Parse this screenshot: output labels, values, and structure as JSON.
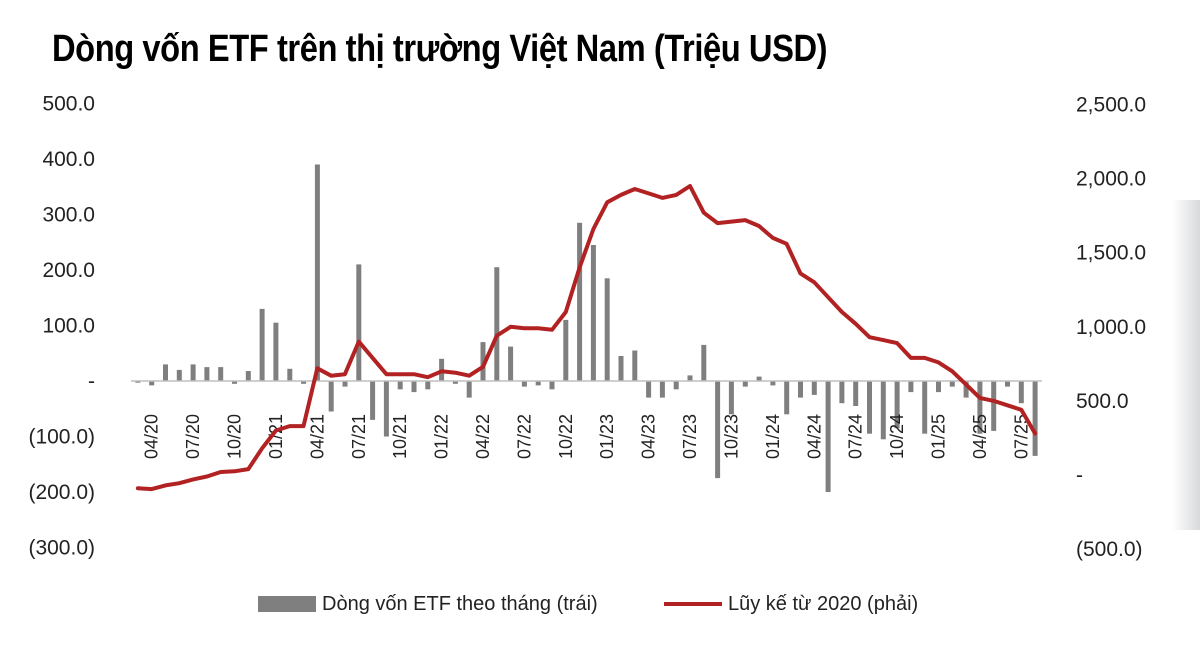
{
  "chart_data": {
    "type": "bar+line",
    "title": "Dòng vốn ETF trên thị trường Việt Nam (Triệu USD)",
    "left_axis": {
      "ticks": [
        500,
        400,
        300,
        200,
        100,
        0,
        -100,
        -200,
        -300
      ],
      "tick_labels": [
        "500.0",
        "400.0",
        "300.0",
        "200.0",
        "100.0",
        "-",
        "(100.0)",
        "(200.0)",
        "(300.0)"
      ],
      "ylim": [
        -300,
        500
      ]
    },
    "right_axis": {
      "ticks": [
        2500,
        2000,
        1500,
        1000,
        500,
        0,
        -500
      ],
      "tick_labels": [
        "2,500.0",
        "2,000.0",
        "1,500.0",
        "1,000.0",
        "500.0",
        "-",
        "(500.0)"
      ],
      "ylim": [
        -500,
        2500
      ]
    },
    "x_tick_labels": [
      "04/20",
      "07/20",
      "10/20",
      "01/21",
      "04/21",
      "07/21",
      "10/21",
      "01/22",
      "04/22",
      "07/22",
      "10/22",
      "01/23",
      "04/23",
      "07/23",
      "10/23",
      "01/24",
      "04/24",
      "07/24",
      "10/24",
      "01/25",
      "04/25",
      "07/25"
    ],
    "months": [
      "03/20",
      "04/20",
      "05/20",
      "06/20",
      "07/20",
      "08/20",
      "09/20",
      "10/20",
      "11/20",
      "12/20",
      "01/21",
      "02/21",
      "03/21",
      "04/21",
      "05/21",
      "06/21",
      "07/21",
      "08/21",
      "09/21",
      "10/21",
      "11/21",
      "12/21",
      "01/22",
      "02/22",
      "03/22",
      "04/22",
      "05/22",
      "06/22",
      "07/22",
      "08/22",
      "09/22",
      "10/22",
      "11/22",
      "12/22",
      "01/23",
      "02/23",
      "03/23",
      "04/23",
      "05/23",
      "06/23",
      "07/23",
      "08/23",
      "09/23",
      "10/23",
      "11/23",
      "12/23",
      "01/24",
      "02/24",
      "03/24",
      "04/24",
      "05/24",
      "06/24",
      "07/24",
      "08/24",
      "09/24",
      "10/24",
      "11/24",
      "12/24",
      "01/25",
      "02/25",
      "03/25",
      "04/25",
      "05/25",
      "06/25",
      "07/25",
      "08/25"
    ],
    "series": [
      {
        "name": "Dòng vốn ETF theo tháng (trái)",
        "type": "bar",
        "axis": "left",
        "color": "#7f7f7f",
        "values": [
          -3,
          -8,
          30,
          20,
          30,
          25,
          25,
          -5,
          18,
          130,
          105,
          22,
          -5,
          390,
          -55,
          -10,
          210,
          -70,
          -100,
          -15,
          -20,
          -15,
          40,
          -5,
          -30,
          70,
          205,
          62,
          -10,
          -8,
          -15,
          110,
          285,
          245,
          185,
          45,
          55,
          -30,
          -30,
          -15,
          10,
          65,
          -175,
          -60,
          -10,
          8,
          -8,
          -60,
          -30,
          -25,
          -200,
          -40,
          -45,
          -95,
          -105,
          -85,
          -20,
          -95,
          -20,
          -10,
          -30,
          -95,
          -90,
          -10,
          -40,
          -135
        ]
      },
      {
        "name": "Lũy kế từ 2020 (phải)",
        "type": "line",
        "axis": "right",
        "color": "#b22222",
        "values": [
          -90,
          -95,
          -70,
          -55,
          -30,
          -10,
          20,
          25,
          40,
          180,
          300,
          330,
          330,
          720,
          670,
          680,
          900,
          790,
          680,
          680,
          680,
          660,
          700,
          690,
          670,
          730,
          940,
          1000,
          990,
          990,
          980,
          1100,
          1400,
          1660,
          1840,
          1890,
          1930,
          1900,
          1870,
          1890,
          1950,
          1770,
          1700,
          1710,
          1720,
          1680,
          1600,
          1560,
          1360,
          1300,
          1200,
          1100,
          1020,
          930,
          910,
          890,
          790,
          790,
          760,
          700,
          610,
          520,
          500,
          470,
          440,
          280
        ]
      }
    ],
    "legend": [
      {
        "label": "Dòng vốn ETF theo tháng (trái)",
        "kind": "bar",
        "color": "#7f7f7f"
      },
      {
        "label": "Lũy kế từ 2020 (phải)",
        "kind": "line",
        "color": "#b22222"
      }
    ],
    "legend_position": "bottom-center"
  }
}
